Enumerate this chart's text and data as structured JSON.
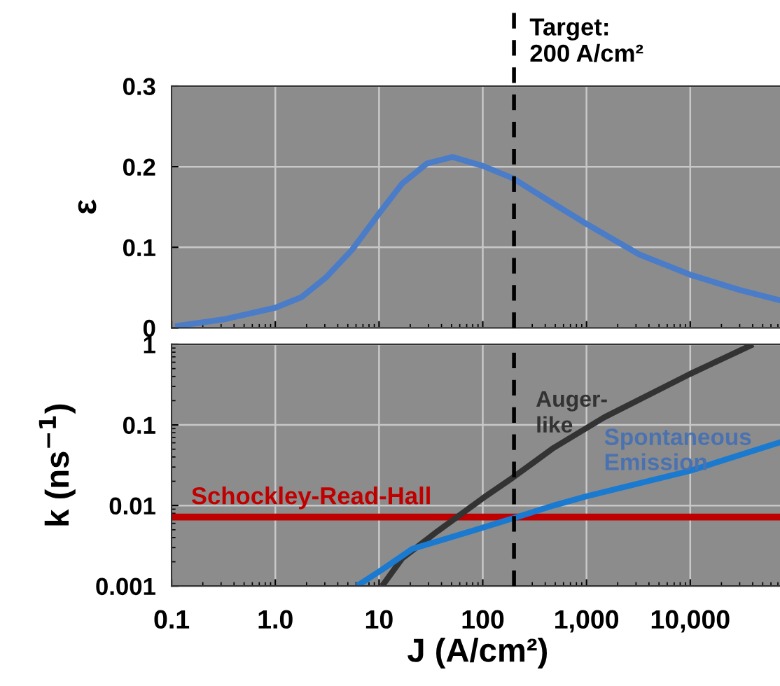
{
  "chart_data": [
    {
      "type": "line",
      "ylabel": "ε",
      "log": "x",
      "xlim": [
        0.1,
        80000
      ],
      "ylim": [
        0,
        0.3
      ],
      "xticks": [
        0.1,
        1,
        10,
        100,
        1000,
        10000
      ],
      "yticks": [
        0,
        0.1,
        0.2,
        0.3
      ],
      "grid": true,
      "tick_labels": "y",
      "x": [
        0.108,
        0.33,
        1.0,
        1.78,
        3.1,
        5.5,
        10,
        16.7,
        29,
        51,
        100,
        193,
        483,
        1000,
        3240,
        10000,
        30000,
        80000
      ],
      "series": [
        {
          "color": "#4a7cc8",
          "values": [
            0.002,
            0.011,
            0.025,
            0.038,
            0.063,
            0.097,
            0.142,
            0.179,
            0.204,
            0.212,
            0.201,
            0.186,
            0.154,
            0.129,
            0.091,
            0.066,
            0.047,
            0.033
          ]
        }
      ],
      "ref_lines": [
        {
          "axis": "x",
          "value": 200,
          "label": "Target:\n200 A/cm²",
          "color": "#000000",
          "line_style": "dashed"
        }
      ]
    },
    {
      "type": "line",
      "xlabel": "J (A/cm²)",
      "ylabel": "k (ns$^{−1}$)",
      "log": "xy",
      "xlim": [
        0.1,
        80000
      ],
      "ylim": [
        0.001,
        1
      ],
      "xticks": [
        0.1,
        {
          "value": 1,
          "label": "1.0"
        },
        10,
        100,
        {
          "value": 1000,
          "label": "1,000"
        },
        {
          "value": 10000,
          "label": "10,000"
        }
      ],
      "yticks": [
        0.001,
        0.01,
        0.1,
        1
      ],
      "grid": true,
      "series": [
        {
          "name": "Schockley-Read-Hall",
          "color": "#c00000",
          "x": [
            0.1,
            80000
          ],
          "values": [
            0.0072,
            0.0072
          ]
        },
        {
          "name": "Auger-\nlike",
          "color": "#333333",
          "x": [
            10.7,
            16.7,
            36.7,
            100,
            193,
            483,
            1480,
            10000,
            40400
          ],
          "values": [
            0.001,
            0.0022,
            0.0048,
            0.0123,
            0.022,
            0.052,
            0.124,
            0.43,
            1.0
          ]
        },
        {
          "name": "Spontaneous\nEmission",
          "color": "#1a7ad0",
          "x": [
            6.1,
            10.7,
            21,
            100,
            193,
            483,
            1000,
            10000,
            80000
          ],
          "values": [
            0.001,
            0.0016,
            0.0029,
            0.0053,
            0.0069,
            0.01,
            0.013,
            0.027,
            0.063
          ]
        }
      ],
      "ref_lines": [
        {
          "axis": "x",
          "value": 200,
          "color": "#000000",
          "line_style": "dashed"
        }
      ]
    }
  ]
}
